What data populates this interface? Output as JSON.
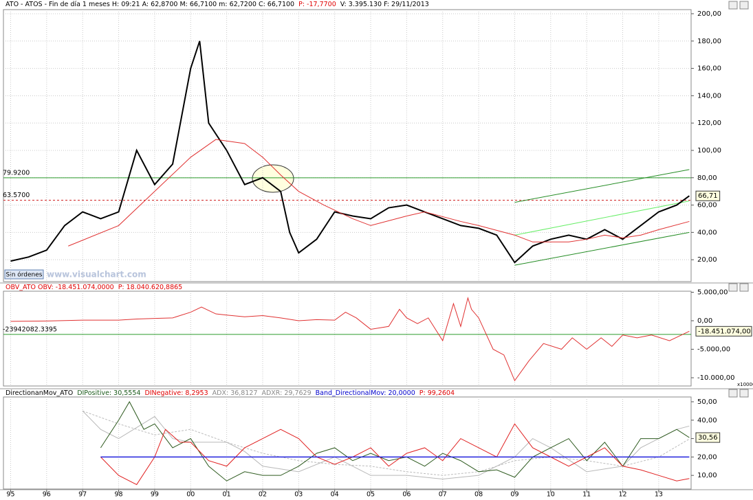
{
  "chart_data": [
    {
      "type": "line",
      "header": [
        {
          "text": "ATO - ATOS - Fin de día 1 meses H: 09:21 A: 62,8700 M: 66,7100 m: 62,7200 C: 66,7100",
          "color": "#000"
        },
        {
          "text": "P: -17,7700",
          "color": "#e00000"
        },
        {
          "text": "V: 3.395.130 F: 29/11/2013",
          "color": "#000"
        }
      ],
      "watermark": "www.visualchart.com",
      "button": "Sin órdenes",
      "ylim": [
        4,
        203
      ],
      "yticks": [
        {
          "value": 20,
          "label": "20,00"
        },
        {
          "value": 40,
          "label": "40,00"
        },
        {
          "value": 60,
          "label": "60,00"
        },
        {
          "value": 80,
          "label": "80,00"
        },
        {
          "value": 100,
          "label": "100,00"
        },
        {
          "value": 120,
          "label": "120,00"
        },
        {
          "value": 140,
          "label": "140,00"
        },
        {
          "value": 160,
          "label": "160,00"
        },
        {
          "value": 180,
          "label": "180,00"
        },
        {
          "value": 200,
          "label": "200,00"
        }
      ],
      "grid": true,
      "series": [
        {
          "color": "#000000",
          "width": 2,
          "x": [
            1995,
            1995.5,
            1996,
            1996.5,
            1997,
            1997.5,
            1998,
            1998.5,
            1999,
            1999.5,
            2000,
            2000.25,
            2000.5,
            2001,
            2001.5,
            2002,
            2002.5,
            2002.75,
            2003,
            2003.5,
            2004,
            2004.5,
            2005,
            2005.5,
            2006,
            2006.5,
            2007,
            2007.5,
            2008,
            2008.5,
            2009,
            2009.5,
            2010,
            2010.5,
            2011,
            2011.5,
            2012,
            2012.5,
            2013,
            2013.5,
            2013.85
          ],
          "values": [
            19,
            22,
            27,
            45,
            55,
            50,
            55,
            100,
            75,
            90,
            160,
            180,
            120,
            100,
            75,
            80,
            70,
            40,
            25,
            35,
            55,
            52,
            50,
            58,
            60,
            55,
            50,
            45,
            43,
            38,
            18,
            30,
            35,
            38,
            35,
            42,
            35,
            45,
            55,
            60,
            66.71
          ]
        },
        {
          "color": "#e03030",
          "width": 1,
          "x": [
            1996.6,
            1998,
            1999,
            2000,
            2000.7,
            2001.5,
            2002,
            2002.5,
            2003,
            2003.7,
            2004.5,
            2005,
            2006,
            2006.5,
            2007.5,
            2008,
            2009,
            2009.5,
            2010.5,
            2011,
            2011.5,
            2012,
            2012.5,
            2013,
            2013.85
          ],
          "values": [
            30,
            45,
            70,
            95,
            108,
            105,
            95,
            82,
            70,
            60,
            50,
            45,
            52,
            55,
            48,
            45,
            38,
            33,
            33,
            35,
            38,
            36,
            38,
            42,
            48
          ]
        }
      ],
      "levels": [
        {
          "value": 79.92,
          "label": "79.9200",
          "color": "#2a9a2a",
          "dash": false
        },
        {
          "value": 63.57,
          "label": "63.5700",
          "color": "#d02020",
          "dash": true
        }
      ],
      "trendlines": [
        {
          "x": [
            2009,
            2013.85
          ],
          "values": [
            16,
            40
          ],
          "color": "#228b22"
        },
        {
          "x": [
            2009,
            2013.85
          ],
          "values": [
            38,
            63
          ],
          "color": "#66ee66"
        },
        {
          "x": [
            2009,
            2013.85
          ],
          "values": [
            62,
            86
          ],
          "color": "#228b22"
        }
      ],
      "last_value": {
        "value": 66.71,
        "label": "66,71"
      }
    },
    {
      "type": "line",
      "header": [
        {
          "text": "OBV_ATO OBV: -18.451.074,0000",
          "color": "#e00000"
        },
        {
          "text": "P: 18.040.620,8865",
          "color": "#e00000"
        }
      ],
      "ylim": [
        -11446,
        5181
      ],
      "yticks": [
        {
          "value": 5000,
          "label": "5.000,00"
        },
        {
          "value": 0,
          "label": "0,00"
        },
        {
          "value": -5000,
          "label": "-5.000,00"
        },
        {
          "value": -10000,
          "label": "-10.000,00"
        }
      ],
      "grid": false,
      "unit": "x10000",
      "series": [
        {
          "color": "#e03030",
          "width": 1,
          "x": [
            1995,
            1996,
            1997,
            1998,
            1998.5,
            1999,
            1999.5,
            2000,
            2000.3,
            2000.7,
            2001,
            2001.5,
            2002,
            2002.5,
            2003,
            2003.5,
            2004,
            2004.3,
            2004.6,
            2005,
            2005.5,
            2005.8,
            2006,
            2006.3,
            2006.6,
            2007,
            2007.3,
            2007.5,
            2007.7,
            2007.8,
            2008,
            2008.4,
            2008.7,
            2009,
            2009.4,
            2009.8,
            2010.3,
            2010.6,
            2011,
            2011.4,
            2011.7,
            2012,
            2012.4,
            2012.8,
            2013.3,
            2013.85
          ],
          "values": [
            -100,
            -50,
            100,
            100,
            300,
            400,
            500,
            1500,
            2400,
            1200,
            1000,
            700,
            900,
            500,
            0,
            200,
            100,
            1500,
            500,
            -1500,
            -1000,
            2000,
            500,
            -500,
            500,
            -3500,
            3000,
            -1000,
            4000,
            2000,
            500,
            -5000,
            -6000,
            -10500,
            -7000,
            -4000,
            -5000,
            -3000,
            -5000,
            -3000,
            -4500,
            -2500,
            -3000,
            -2500,
            -3500,
            -1845.1074
          ]
        }
      ],
      "levels": [
        {
          "value": -2394.20823395,
          "label": "-23942082.3395",
          "color": "#2a9a2a",
          "dash": false
        }
      ],
      "last_value": {
        "value": -1845.1074,
        "label": "-18.451.074,00"
      }
    },
    {
      "type": "line",
      "header": [
        {
          "text": "DirectionanMov_ATO",
          "color": "#000"
        },
        {
          "text": "DIPositive: 30,5554",
          "color": "#1a5a1a"
        },
        {
          "text": "DINegative: 8,2953",
          "color": "#e00000"
        },
        {
          "text": "ADX: 36,8127",
          "color": "#888888"
        },
        {
          "text": "ADXR: 29,7629",
          "color": "#888888"
        },
        {
          "text": "Band_DirectionalMov: 20,0000",
          "color": "#0000cc"
        },
        {
          "text": "P: 99,2604",
          "color": "#e00000"
        }
      ],
      "ylim": [
        2.6,
        52.6
      ],
      "yticks": [
        {
          "value": 10,
          "label": "10,00"
        },
        {
          "value": 20,
          "label": "20,00"
        },
        {
          "value": 30,
          "label": "30,00"
        },
        {
          "value": 40,
          "label": "40,00"
        },
        {
          "value": 50,
          "label": "50,00"
        }
      ],
      "grid": false,
      "xlim": [
        1994.8,
        2013.9
      ],
      "xticks": [
        {
          "value": 1995,
          "label": "95"
        },
        {
          "value": 1996,
          "label": "96"
        },
        {
          "value": 1997,
          "label": "97"
        },
        {
          "value": 1998,
          "label": "98"
        },
        {
          "value": 1999,
          "label": "99"
        },
        {
          "value": 2000,
          "label": "00"
        },
        {
          "value": 2001,
          "label": "01"
        },
        {
          "value": 2002,
          "label": "02"
        },
        {
          "value": 2003,
          "label": "03"
        },
        {
          "value": 2004,
          "label": "04"
        },
        {
          "value": 2005,
          "label": "05"
        },
        {
          "value": 2006,
          "label": "06"
        },
        {
          "value": 2007,
          "label": "07"
        },
        {
          "value": 2008,
          "label": "08"
        },
        {
          "value": 2009,
          "label": "09"
        },
        {
          "value": 2010,
          "label": "10"
        },
        {
          "value": 2011,
          "label": "11"
        },
        {
          "value": 2012,
          "label": "12"
        },
        {
          "value": 2013,
          "label": "13"
        }
      ],
      "series": [
        {
          "color": "#bbbbbb",
          "width": 1,
          "dash": true,
          "x": [
            1997,
            1998,
            1999,
            2000,
            2001,
            2002,
            2003,
            2004,
            2005,
            2006,
            2007,
            2008,
            2009,
            2010,
            2011,
            2012,
            2013,
            2013.85
          ],
          "values": [
            45,
            38,
            32,
            35,
            28,
            22,
            18,
            16,
            15,
            12,
            10,
            12,
            18,
            20,
            18,
            15,
            20,
            29.7629
          ]
        },
        {
          "color": "#b8b8b8",
          "width": 1,
          "x": [
            1997,
            1997.5,
            1998,
            1999,
            1999.5,
            2000,
            2001,
            2001.5,
            2002,
            2003,
            2004,
            2005,
            2006,
            2007,
            2008,
            2009,
            2009.5,
            2010,
            2011,
            2012,
            2012.5,
            2013,
            2013.5,
            2013.85
          ],
          "values": [
            45,
            35,
            30,
            42,
            30,
            28,
            28,
            23,
            15,
            12,
            20,
            10,
            10,
            8,
            10,
            20,
            30,
            25,
            12,
            15,
            25,
            30,
            35,
            36.8127
          ]
        },
        {
          "color": "#2d5a1e",
          "width": 1,
          "x": [
            1997.5,
            1998,
            1998.3,
            1998.7,
            1999,
            1999.5,
            2000,
            2000.5,
            2001,
            2001.5,
            2002,
            2002.5,
            2003,
            2003.5,
            2004,
            2004.5,
            2005,
            2005.5,
            2006,
            2006.5,
            2007,
            2007.5,
            2008,
            2008.5,
            2009,
            2009.5,
            2010,
            2010.5,
            2011,
            2011.5,
            2012,
            2012.5,
            2013,
            2013.5,
            2013.85
          ],
          "values": [
            25,
            40,
            50,
            35,
            38,
            25,
            30,
            15,
            7,
            12,
            10,
            10,
            15,
            22,
            25,
            18,
            22,
            18,
            20,
            15,
            22,
            18,
            12,
            13,
            9,
            20,
            25,
            30,
            18,
            28,
            15,
            30,
            30,
            35,
            30.5554
          ]
        },
        {
          "color": "#e02020",
          "width": 1,
          "x": [
            1997.5,
            1998,
            1998.5,
            1999,
            1999.3,
            1999.7,
            2000,
            2000.5,
            2001,
            2001.5,
            2002,
            2002.5,
            2003,
            2003.5,
            2004,
            2004.5,
            2005,
            2005.5,
            2006,
            2006.5,
            2007,
            2007.5,
            2008,
            2008.5,
            2009,
            2009.5,
            2010,
            2010.5,
            2011,
            2011.5,
            2012,
            2012.5,
            2013,
            2013.5,
            2013.85
          ],
          "values": [
            20,
            10,
            5,
            20,
            35,
            28,
            28,
            18,
            15,
            25,
            30,
            35,
            30,
            20,
            16,
            20,
            25,
            15,
            22,
            25,
            18,
            30,
            25,
            20,
            38,
            25,
            20,
            15,
            20,
            25,
            15,
            13,
            10,
            7,
            8.2953
          ]
        },
        {
          "color": "#2020dd",
          "width": 1.5,
          "x": [
            1997.5,
            2013.85
          ],
          "values": [
            20,
            20
          ]
        }
      ],
      "last_value": {
        "value": 30.5554,
        "label": "30,56"
      }
    }
  ]
}
